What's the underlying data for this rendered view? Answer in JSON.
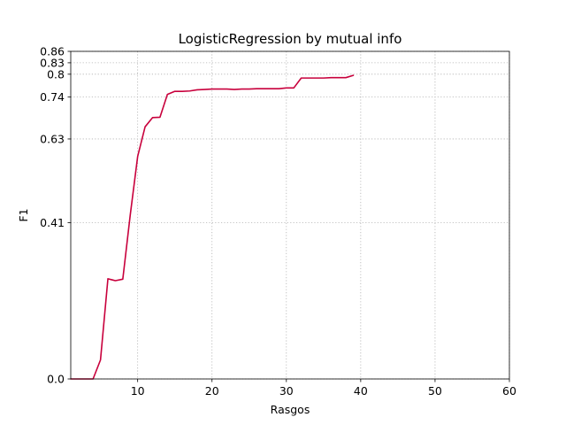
{
  "chart_data": {
    "type": "line",
    "title": "LogisticRegression by mutual info",
    "xlabel": "Rasgos",
    "ylabel": "F1",
    "xlim": [
      1,
      60
    ],
    "ylim": [
      0.0,
      0.86
    ],
    "xticks": [
      10,
      20,
      30,
      40,
      50,
      60
    ],
    "xtick_labels": [
      "10",
      "20",
      "30",
      "40",
      "50",
      "60"
    ],
    "yticks": [
      0.0,
      0.41,
      0.63,
      0.74,
      0.8,
      0.83,
      0.86
    ],
    "ytick_labels": [
      "0.0",
      "0.41",
      "0.63",
      "0.74",
      "0.8",
      "0.83",
      "0.86"
    ],
    "grid": true,
    "series": [
      {
        "color": "#c8003c",
        "x": [
          1,
          2,
          3,
          4,
          5,
          6,
          7,
          8,
          9,
          10,
          11,
          12,
          13,
          14,
          15,
          16,
          17,
          18,
          19,
          20,
          21,
          22,
          23,
          24,
          25,
          26,
          27,
          28,
          29,
          30,
          31,
          32,
          33,
          34,
          35,
          36,
          37,
          38,
          39
        ],
        "y": [
          0.0,
          0.0,
          0.0,
          0.0,
          0.05,
          0.263,
          0.258,
          0.262,
          0.43,
          0.584,
          0.662,
          0.686,
          0.687,
          0.747,
          0.755,
          0.755,
          0.756,
          0.759,
          0.76,
          0.761,
          0.761,
          0.761,
          0.76,
          0.761,
          0.761,
          0.762,
          0.762,
          0.762,
          0.762,
          0.764,
          0.764,
          0.79,
          0.79,
          0.79,
          0.79,
          0.791,
          0.791,
          0.791,
          0.797
        ]
      }
    ]
  }
}
